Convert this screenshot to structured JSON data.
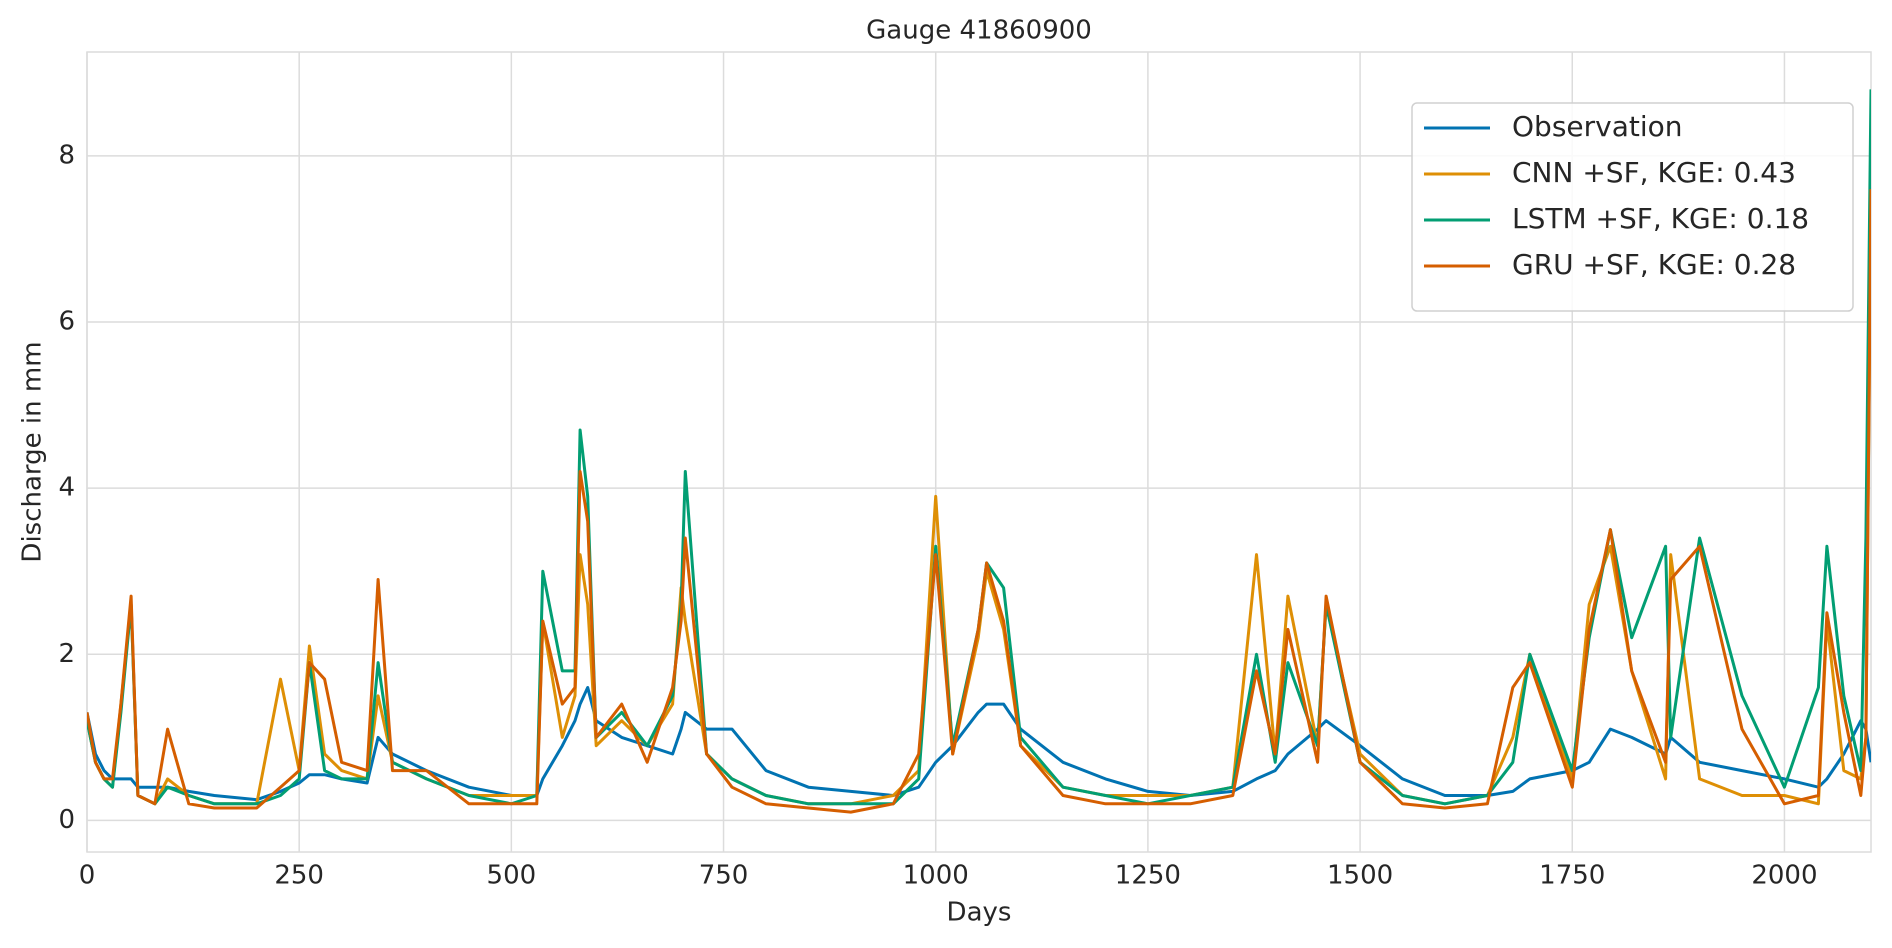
{
  "chart_data": {
    "type": "line",
    "title": "Gauge 41860900",
    "x_label": "Days",
    "y_label": "Discharge in mm",
    "x": [
      0,
      10,
      20,
      30,
      40,
      52,
      60,
      80,
      95,
      120,
      150,
      200,
      228,
      250,
      262,
      280,
      300,
      330,
      343,
      360,
      400,
      450,
      500,
      530,
      537,
      560,
      575,
      581,
      590,
      600,
      630,
      660,
      690,
      700,
      705,
      730,
      760,
      800,
      850,
      900,
      950,
      980,
      1000,
      1020,
      1050,
      1060,
      1080,
      1100,
      1150,
      1200,
      1250,
      1300,
      1350,
      1378,
      1400,
      1415,
      1450,
      1460,
      1500,
      1550,
      1600,
      1650,
      1680,
      1700,
      1750,
      1770,
      1795,
      1820,
      1860,
      1866,
      1900,
      1950,
      2000,
      2040,
      2050,
      2070,
      2090,
      2096,
      2102
    ],
    "series": [
      {
        "name": "Observation",
        "color": "#0173b2",
        "values": [
          1.3,
          0.8,
          0.6,
          0.5,
          0.5,
          0.5,
          0.4,
          0.4,
          0.4,
          0.35,
          0.3,
          0.25,
          0.35,
          0.45,
          0.55,
          0.55,
          0.5,
          0.45,
          1.0,
          0.8,
          0.6,
          0.4,
          0.3,
          0.3,
          0.5,
          0.9,
          1.2,
          1.4,
          1.6,
          1.2,
          1.0,
          0.9,
          0.8,
          1.1,
          1.3,
          1.1,
          1.1,
          0.6,
          0.4,
          0.35,
          0.3,
          0.4,
          0.7,
          0.9,
          1.3,
          1.4,
          1.4,
          1.1,
          0.7,
          0.5,
          0.35,
          0.3,
          0.35,
          0.5,
          0.6,
          0.8,
          1.1,
          1.2,
          0.9,
          0.5,
          0.3,
          0.3,
          0.35,
          0.5,
          0.6,
          0.7,
          1.1,
          1.0,
          0.8,
          1.0,
          0.7,
          0.6,
          0.5,
          0.4,
          0.5,
          0.8,
          1.2,
          1.1,
          0.7
        ]
      },
      {
        "name": "CNN +SF, KGE: 0.43",
        "color": "#de8f05",
        "values": [
          1.2,
          0.7,
          0.5,
          0.4,
          1.4,
          2.6,
          0.3,
          0.2,
          0.5,
          0.3,
          0.2,
          0.2,
          1.7,
          0.6,
          2.1,
          0.8,
          0.6,
          0.5,
          1.5,
          0.7,
          0.5,
          0.3,
          0.3,
          0.3,
          2.4,
          1.0,
          1.5,
          3.2,
          2.6,
          0.9,
          1.2,
          0.9,
          1.4,
          2.8,
          2.4,
          0.8,
          0.5,
          0.3,
          0.2,
          0.2,
          0.3,
          0.6,
          3.9,
          0.8,
          2.2,
          3.0,
          2.3,
          0.9,
          0.4,
          0.3,
          0.3,
          0.3,
          0.4,
          3.2,
          0.8,
          2.7,
          0.9,
          2.6,
          0.8,
          0.3,
          0.2,
          0.3,
          1.0,
          2.0,
          0.5,
          2.6,
          3.3,
          1.8,
          0.5,
          3.2,
          0.5,
          0.3,
          0.3,
          0.2,
          2.4,
          0.6,
          0.5,
          1.0,
          7.5
        ]
      },
      {
        "name": "LSTM +SF, KGE: 0.18",
        "color": "#029e73",
        "values": [
          1.2,
          0.7,
          0.5,
          0.4,
          1.3,
          2.6,
          0.3,
          0.2,
          0.4,
          0.3,
          0.2,
          0.2,
          0.3,
          0.5,
          1.9,
          0.6,
          0.5,
          0.5,
          1.9,
          0.7,
          0.5,
          0.3,
          0.2,
          0.3,
          3.0,
          1.8,
          1.8,
          4.7,
          3.9,
          1.0,
          1.3,
          0.9,
          1.5,
          2.6,
          4.2,
          0.8,
          0.5,
          0.3,
          0.2,
          0.2,
          0.2,
          0.5,
          3.3,
          0.9,
          2.3,
          3.1,
          2.8,
          1.0,
          0.4,
          0.3,
          0.2,
          0.3,
          0.4,
          2.0,
          0.7,
          1.9,
          0.9,
          2.6,
          0.7,
          0.3,
          0.2,
          0.3,
          0.7,
          2.0,
          0.6,
          2.2,
          3.5,
          2.2,
          3.3,
          1.0,
          3.4,
          1.5,
          0.4,
          1.6,
          3.3,
          1.5,
          0.6,
          3.4,
          8.8
        ]
      },
      {
        "name": "GRU +SF, KGE: 0.28",
        "color": "#d55e00",
        "values": [
          1.3,
          0.7,
          0.5,
          0.5,
          1.4,
          2.7,
          0.3,
          0.2,
          1.1,
          0.2,
          0.15,
          0.15,
          0.4,
          0.6,
          1.9,
          1.7,
          0.7,
          0.6,
          2.9,
          0.6,
          0.6,
          0.2,
          0.2,
          0.2,
          2.4,
          1.4,
          1.6,
          4.2,
          3.6,
          1.0,
          1.4,
          0.7,
          1.6,
          2.4,
          3.4,
          0.8,
          0.4,
          0.2,
          0.15,
          0.1,
          0.2,
          0.8,
          3.2,
          0.8,
          2.3,
          3.1,
          2.4,
          0.9,
          0.3,
          0.2,
          0.2,
          0.2,
          0.3,
          1.8,
          0.8,
          2.3,
          0.7,
          2.7,
          0.7,
          0.2,
          0.15,
          0.2,
          1.6,
          1.9,
          0.4,
          2.3,
          3.5,
          1.8,
          0.7,
          2.9,
          3.3,
          1.1,
          0.2,
          0.3,
          2.5,
          1.3,
          0.3,
          1.0,
          7.6
        ]
      }
    ],
    "xlim": [
      0,
      2102
    ],
    "xticks": [
      0,
      250,
      500,
      750,
      1000,
      1250,
      1500,
      1750,
      2000
    ],
    "ylim": [
      -0.38,
      9.25
    ],
    "yticks": [
      0,
      2,
      4,
      6,
      8
    ],
    "grid": true,
    "legend": "upper right"
  }
}
